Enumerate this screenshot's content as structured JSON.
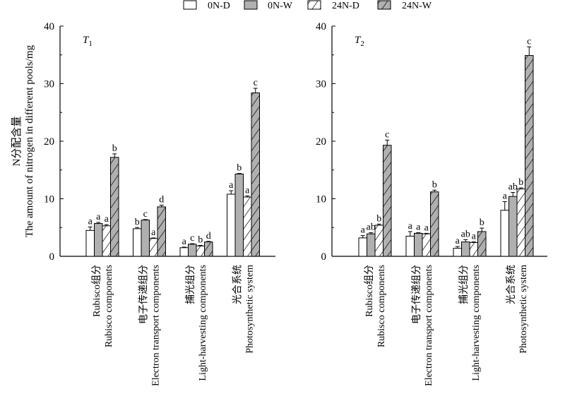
{
  "legend": [
    {
      "label": "0N-D",
      "pattern": "white"
    },
    {
      "label": "0N-W",
      "pattern": "gray"
    },
    {
      "label": "24N-D",
      "pattern": "white-hatch"
    },
    {
      "label": "24N-W",
      "pattern": "gray-hatch"
    }
  ],
  "colors": {
    "gray_fill": "#b0b0b0",
    "stroke": "#000000",
    "white_fill": "#ffffff"
  },
  "ylabel_cn": "N分配含量",
  "ylabel_en": "The amount of nitrogen in different pools/mg",
  "chart_data": [
    {
      "type": "bar",
      "panel": "T",
      "panel_sub": "1",
      "categories": [
        {
          "cn": "Rubisco组分",
          "en": "Rubisco components"
        },
        {
          "cn": "电子传递组分",
          "en": "Electron transport components"
        },
        {
          "cn": "捕光组分",
          "en": "Light-harvesting components"
        },
        {
          "cn": "光合系统",
          "en": "Photosynthetic system"
        }
      ],
      "ylim": [
        0,
        40
      ],
      "yticks": [
        0,
        10,
        20,
        30,
        40
      ],
      "series": [
        {
          "name": "0N-D",
          "values": [
            4.5,
            4.8,
            1.5,
            10.8
          ],
          "errors": [
            0.6,
            0.2,
            0.1,
            0.6
          ],
          "letters": [
            "a",
            "b",
            "a",
            "a"
          ]
        },
        {
          "name": "0N-W",
          "values": [
            5.7,
            6.3,
            2.1,
            14.3
          ],
          "errors": [
            0.2,
            0.1,
            0.1,
            0.1
          ],
          "letters": [
            "a",
            "c",
            "c",
            "b"
          ]
        },
        {
          "name": "24N-D",
          "values": [
            5.3,
            3.1,
            1.8,
            10.3
          ],
          "errors": [
            0.2,
            0.1,
            0.1,
            0.2
          ],
          "letters": [
            "a",
            "a",
            "b",
            "a"
          ]
        },
        {
          "name": "24N-W",
          "values": [
            17.2,
            8.6,
            2.5,
            28.4
          ],
          "errors": [
            0.6,
            0.3,
            0.1,
            0.8
          ],
          "letters": [
            "b",
            "d",
            "d",
            "c"
          ]
        }
      ]
    },
    {
      "type": "bar",
      "panel": "T",
      "panel_sub": "2",
      "categories": [
        {
          "cn": "Rubisco组分",
          "en": "Rubisco components"
        },
        {
          "cn": "电子传递组分",
          "en": "Electron transport components"
        },
        {
          "cn": "捕光组分",
          "en": "Light-harvesting components"
        },
        {
          "cn": "光合系统",
          "en": "Photosynthetic system"
        }
      ],
      "ylim": [
        0,
        40
      ],
      "yticks": [
        0,
        10,
        20,
        30,
        40
      ],
      "series": [
        {
          "name": "0N-D",
          "values": [
            3.2,
            3.5,
            1.4,
            8.0
          ],
          "errors": [
            0.4,
            0.8,
            0.3,
            1.5
          ],
          "letters": [
            "a",
            "a",
            "a",
            "a"
          ]
        },
        {
          "name": "0N-W",
          "values": [
            3.9,
            4.0,
            2.5,
            10.4
          ],
          "errors": [
            0.2,
            0.1,
            0.4,
            0.7
          ],
          "letters": [
            "ab",
            "a",
            "ab",
            "ab"
          ]
        },
        {
          "name": "24N-D",
          "values": [
            5.4,
            3.9,
            2.4,
            11.7
          ],
          "errors": [
            0.2,
            0.1,
            0.1,
            0.2
          ],
          "letters": [
            "b",
            "a",
            "a",
            "b"
          ]
        },
        {
          "name": "24N-W",
          "values": [
            19.3,
            11.2,
            4.3,
            34.9
          ],
          "errors": [
            0.9,
            0.3,
            0.6,
            1.5
          ],
          "letters": [
            "c",
            "b",
            "b",
            "c"
          ]
        }
      ]
    }
  ]
}
